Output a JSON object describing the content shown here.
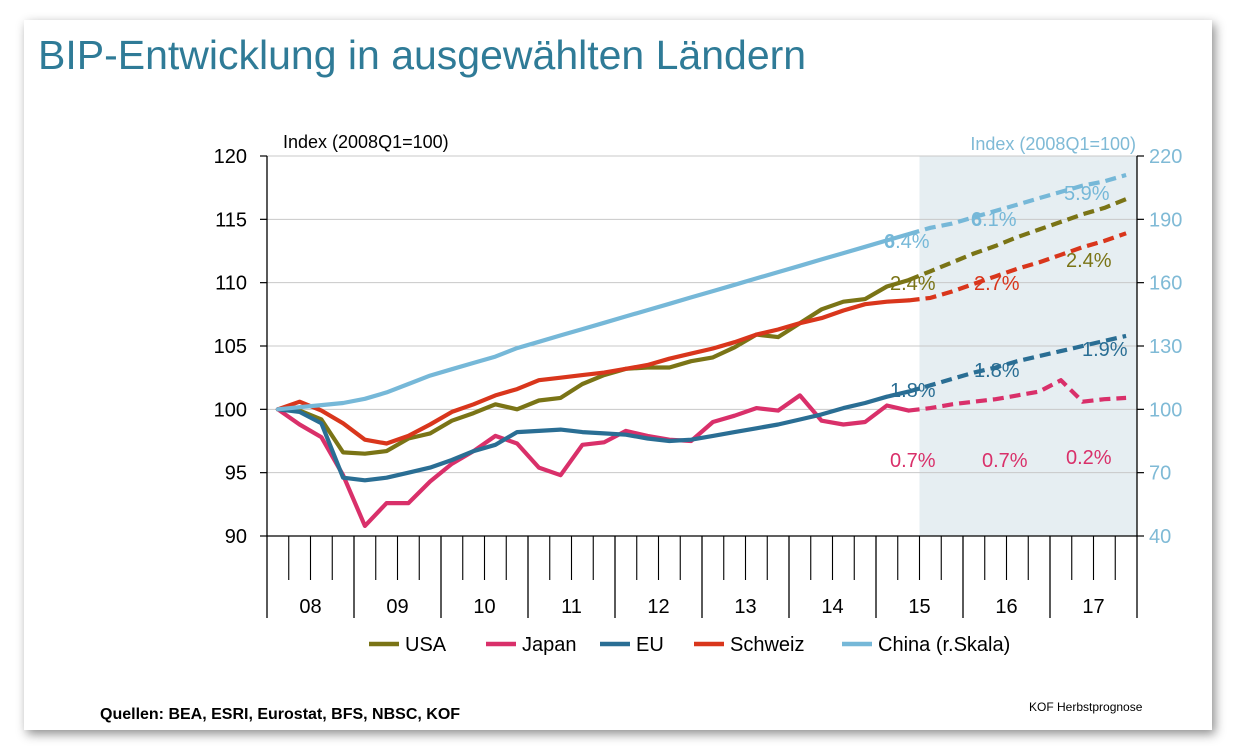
{
  "title": "BIP-Entwicklung in ausgewählten Ländern",
  "sources": "Quellen: BEA, ESRI, Eurostat, BFS, NBSC, KOF",
  "footer": "KOF Herbstprognose",
  "colors": {
    "USA": "#7a7416",
    "Japan": "#d9306a",
    "EU": "#2a6e94",
    "Schweiz": "#d9361c",
    "China": "#76b8d8",
    "forecast_shade": "#e6eef2",
    "grid": "#c8c8c8",
    "title": "#2f7b97",
    "right_axis": "#7fbad6"
  },
  "chart_data": {
    "type": "line",
    "ylabel_left": "Index (2008Q1=100)",
    "ylabel_right": "Index (2008Q1=100)",
    "ylim_left": [
      90,
      120
    ],
    "yticks_left": [
      90,
      95,
      100,
      105,
      110,
      115,
      120
    ],
    "ylim_right": [
      40,
      220
    ],
    "yticks_right": [
      40,
      70,
      100,
      130,
      160,
      190,
      220
    ],
    "x_start": "2008Q1",
    "x_end": "2017Q4",
    "year_labels": [
      "08",
      "09",
      "10",
      "11",
      "12",
      "13",
      "14",
      "15",
      "16",
      "17"
    ],
    "forecast_from": "2015Q3",
    "grid": "horizontal",
    "legend_position": "bottom",
    "series": [
      {
        "name": "USA",
        "axis": "left",
        "values": [
          100.0,
          99.9,
          99.2,
          96.6,
          96.5,
          96.7,
          97.7,
          98.1,
          99.1,
          99.7,
          100.4,
          100.0,
          100.7,
          100.9,
          102.0,
          102.7,
          103.2,
          103.3,
          103.3,
          103.8,
          104.1,
          104.9,
          105.9,
          105.7,
          106.8,
          107.9,
          108.5,
          108.7,
          109.7,
          110.2,
          110.9,
          111.6,
          112.3,
          112.9,
          113.6,
          114.2,
          114.8,
          115.4,
          115.9,
          116.6
        ]
      },
      {
        "name": "Japan",
        "axis": "left",
        "values": [
          100.0,
          98.8,
          97.8,
          94.8,
          90.8,
          92.6,
          92.6,
          94.3,
          95.7,
          96.7,
          97.9,
          97.3,
          95.4,
          94.8,
          97.2,
          97.4,
          98.3,
          97.9,
          97.6,
          97.5,
          99.0,
          99.5,
          100.1,
          99.9,
          101.1,
          99.1,
          98.8,
          99.0,
          100.3,
          99.9,
          100.1,
          100.4,
          100.6,
          100.8,
          101.1,
          101.4,
          102.3,
          100.6,
          100.8,
          100.9
        ]
      },
      {
        "name": "EU",
        "axis": "left",
        "values": [
          100.0,
          99.8,
          98.9,
          94.6,
          94.4,
          94.6,
          95.0,
          95.4,
          96.0,
          96.7,
          97.2,
          98.2,
          98.3,
          98.4,
          98.2,
          98.1,
          98.0,
          97.7,
          97.5,
          97.6,
          97.9,
          98.2,
          98.5,
          98.8,
          99.2,
          99.6,
          100.1,
          100.5,
          101.0,
          101.4,
          101.9,
          102.4,
          102.9,
          103.3,
          103.8,
          104.2,
          104.6,
          105.0,
          105.4,
          105.8
        ]
      },
      {
        "name": "Schweiz",
        "axis": "left",
        "values": [
          100.0,
          100.6,
          99.9,
          98.9,
          97.6,
          97.3,
          97.9,
          98.8,
          99.8,
          100.4,
          101.1,
          101.6,
          102.3,
          102.5,
          102.7,
          102.9,
          103.2,
          103.5,
          104.0,
          104.4,
          104.8,
          105.3,
          105.9,
          106.3,
          106.8,
          107.2,
          107.8,
          108.3,
          108.5,
          108.6,
          108.8,
          109.3,
          109.9,
          110.5,
          111.1,
          111.6,
          112.2,
          112.8,
          113.3,
          113.9
        ]
      },
      {
        "name": "China (r.Skala)",
        "axis": "right",
        "values": [
          100.0,
          101.0,
          102.0,
          103.0,
          105.0,
          108.0,
          112.0,
          116.0,
          119.0,
          122.0,
          125.0,
          129.0,
          132.0,
          135.0,
          138.0,
          141.0,
          144.0,
          147.0,
          150.0,
          153.0,
          156.0,
          159.0,
          162.0,
          165.0,
          168.0,
          171.0,
          174.0,
          177.0,
          180.0,
          183.0,
          186.0,
          188.0,
          191.0,
          194.0,
          197.0,
          200.0,
          203.0,
          206.0,
          208.0,
          211.0
        ]
      }
    ],
    "annotations": [
      {
        "series": "China (r.Skala)",
        "bold": "6",
        "rest": ".4%",
        "year": "15"
      },
      {
        "series": "China (r.Skala)",
        "bold": "6",
        "rest": ".1%",
        "year": "16"
      },
      {
        "series": "China (r.Skala)",
        "bold": "",
        "rest": "5.9%",
        "year": "17"
      },
      {
        "series": "USA",
        "bold": "",
        "rest": "2.4%",
        "year": "15"
      },
      {
        "series": "Schweiz",
        "bold": "",
        "rest": "2.7%",
        "year": "16"
      },
      {
        "series": "USA",
        "bold": "",
        "rest": "2.4%",
        "year": "17"
      },
      {
        "series": "EU",
        "bold": "",
        "rest": "1.8%",
        "year": "15"
      },
      {
        "series": "EU",
        "bold": "",
        "rest": "1.8%",
        "year": "16"
      },
      {
        "series": "EU",
        "bold": "",
        "rest": "1.9%",
        "year": "17"
      },
      {
        "series": "Japan",
        "bold": "",
        "rest": "0.7%",
        "year": "15"
      },
      {
        "series": "Japan",
        "bold": "",
        "rest": "0.7%",
        "year": "16"
      },
      {
        "series": "Japan",
        "bold": "",
        "rest": "0.2%",
        "year": "17"
      }
    ],
    "legend": [
      "USA",
      "Japan",
      "EU",
      "Schweiz",
      "China (r.Skala)"
    ]
  }
}
